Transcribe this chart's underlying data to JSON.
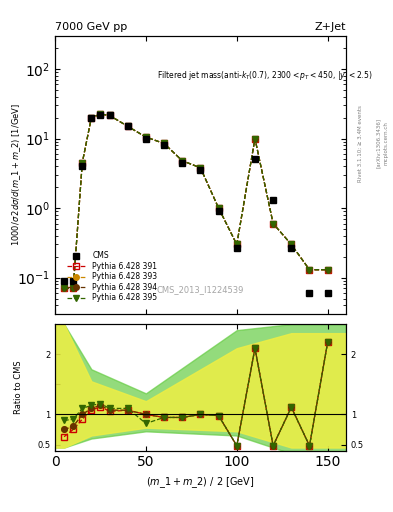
{
  "title_left": "7000 GeV pp",
  "title_right": "Z+Jet",
  "annotation": "Filtered jet mass(anti-k_{T}(0.7), 2300<p_{T}<450, |y|<2.5)",
  "cms_label": "CMS_2013_I1224539",
  "ylabel_main": "1000/σ 2dσ/d(m_1 + m_2) [1/GeV]",
  "ylabel_ratio": "Ratio to CMS",
  "xlabel": "(m_1 + m_2) / 2 [GeV]",
  "rivet_label": "Rivet 3.1.10; ≥ 3.4M events",
  "arxiv_label": "[arXiv:1306.3436]",
  "mcplots_label": "mcplots.cern.ch",
  "x_cms": [
    5,
    10,
    15,
    20,
    25,
    30,
    40,
    50,
    60,
    70,
    80,
    90,
    100,
    110,
    120,
    130,
    140,
    150
  ],
  "y_cms": [
    0.09,
    0.09,
    4.0,
    20.0,
    22.0,
    22.0,
    15.0,
    10.0,
    8.0,
    4.5,
    3.5,
    0.9,
    0.27,
    5.0,
    1.3,
    0.27,
    0.06,
    0.06
  ],
  "x_py": [
    5,
    10,
    15,
    20,
    25,
    30,
    40,
    50,
    60,
    70,
    80,
    90,
    100,
    110,
    120,
    130,
    140,
    150
  ],
  "y_py391": [
    0.07,
    0.07,
    4.5,
    20.0,
    22.5,
    21.5,
    15.0,
    10.5,
    8.5,
    4.8,
    3.8,
    1.0,
    0.3,
    10.0,
    0.6,
    0.3,
    0.13,
    0.13
  ],
  "y_py393": [
    0.07,
    0.07,
    4.5,
    20.0,
    22.5,
    21.5,
    15.0,
    10.5,
    8.5,
    4.8,
    3.8,
    1.0,
    0.3,
    10.0,
    0.6,
    0.3,
    0.13,
    0.13
  ],
  "y_py394": [
    0.07,
    0.07,
    4.5,
    20.0,
    22.5,
    21.5,
    15.0,
    10.5,
    8.5,
    4.8,
    3.8,
    1.0,
    0.3,
    10.0,
    0.6,
    0.3,
    0.13,
    0.13
  ],
  "y_py395": [
    0.07,
    0.07,
    4.5,
    20.0,
    22.5,
    21.5,
    15.0,
    10.5,
    8.5,
    4.8,
    3.8,
    1.0,
    0.3,
    10.0,
    0.6,
    0.3,
    0.13,
    0.13
  ],
  "ratio_x": [
    5,
    10,
    15,
    20,
    25,
    30,
    40,
    50,
    60,
    70,
    80,
    90,
    100,
    110,
    120,
    130,
    140,
    150
  ],
  "ratio_391": [
    0.63,
    0.75,
    0.92,
    1.07,
    1.13,
    1.05,
    1.07,
    1.0,
    0.95,
    0.95,
    1.0,
    0.98,
    0.48,
    2.1,
    0.48,
    1.12,
    0.48,
    2.2
  ],
  "ratio_393": [
    0.75,
    0.8,
    1.0,
    1.1,
    1.15,
    1.07,
    1.07,
    1.0,
    0.95,
    0.95,
    1.0,
    0.98,
    0.48,
    2.1,
    0.48,
    1.12,
    0.48,
    2.2
  ],
  "ratio_394": [
    0.75,
    0.8,
    1.0,
    1.1,
    1.15,
    1.07,
    1.07,
    1.0,
    0.95,
    0.95,
    1.0,
    0.98,
    0.48,
    2.1,
    0.48,
    1.12,
    0.48,
    2.2
  ],
  "ratio_395": [
    0.9,
    0.92,
    1.1,
    1.15,
    1.18,
    1.1,
    1.1,
    0.85,
    0.95,
    0.95,
    1.0,
    0.98,
    0.48,
    2.1,
    0.48,
    1.12,
    0.48,
    2.2
  ],
  "band_green_x": [
    0,
    5,
    20,
    50,
    100,
    130,
    160
  ],
  "band_green_low": [
    0.45,
    0.45,
    0.6,
    0.72,
    0.65,
    0.35,
    0.35
  ],
  "band_green_high": [
    2.5,
    2.5,
    1.75,
    1.35,
    2.4,
    2.5,
    2.5
  ],
  "band_yellow_x": [
    0,
    5,
    20,
    50,
    100,
    130,
    160
  ],
  "band_yellow_low": [
    0.45,
    0.45,
    0.65,
    0.78,
    0.72,
    0.45,
    0.45
  ],
  "band_yellow_high": [
    2.5,
    2.5,
    1.55,
    1.22,
    2.1,
    2.35,
    2.35
  ],
  "color_391": "#cc0000",
  "color_393": "#cc8800",
  "color_394": "#663300",
  "color_395": "#336600",
  "color_cms": "#000000",
  "bg_color": "#ffffff",
  "ratio_bg": "#dddddd"
}
